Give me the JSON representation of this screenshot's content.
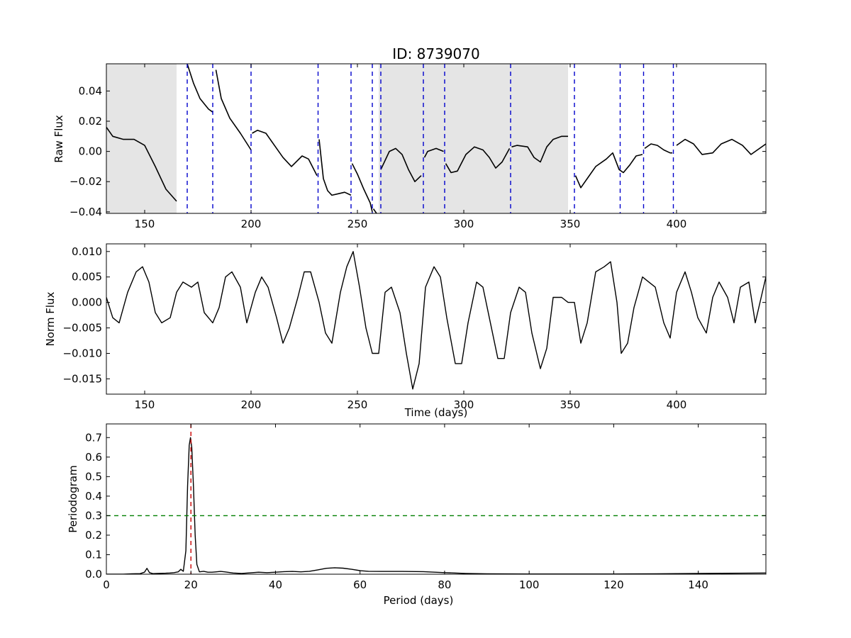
{
  "chart_data": [
    {
      "type": "line",
      "title": "ID: 8739070",
      "xlabel": "",
      "ylabel": "Raw Flux",
      "xlim": [
        132,
        442
      ],
      "ylim": [
        -0.041,
        0.058
      ],
      "xticks": [
        150,
        200,
        250,
        300,
        350,
        400
      ],
      "xtick_labels": [
        "150",
        "200",
        "250",
        "300",
        "350",
        "400"
      ],
      "yticks": [
        -0.04,
        -0.02,
        0.0,
        0.02,
        0.04
      ],
      "ytick_labels": [
        "−0.04",
        "−0.02",
        "0.00",
        "0.02",
        "0.04"
      ],
      "grid": false,
      "shaded_regions": [
        [
          132,
          165
        ],
        [
          260,
          349
        ]
      ],
      "shaded_color": "#e5e5e5",
      "vlines": [
        170,
        182,
        200,
        231.5,
        247,
        257,
        261,
        281,
        291,
        322,
        352,
        373.5,
        384.5,
        398.5
      ],
      "vline_color": "#0000cc",
      "line_color": "#000000",
      "segments": [
        {
          "x": [
            132,
            135,
            140,
            145,
            150,
            155,
            160,
            165
          ],
          "y": [
            0.016,
            0.01,
            0.008,
            0.008,
            0.004,
            -0.01,
            -0.025,
            -0.033
          ]
        },
        {
          "x": [
            170,
            173,
            176,
            180,
            182
          ],
          "y": [
            0.058,
            0.045,
            0.035,
            0.028,
            0.026
          ]
        },
        {
          "x": [
            183.5,
            186,
            190,
            195,
            200
          ],
          "y": [
            0.054,
            0.035,
            0.022,
            0.012,
            0.001
          ]
        },
        {
          "x": [
            200.5,
            203,
            207,
            211,
            215,
            219,
            224,
            227,
            231
          ],
          "y": [
            0.012,
            0.014,
            0.012,
            0.004,
            -0.004,
            -0.01,
            -0.003,
            -0.005,
            -0.016
          ]
        },
        {
          "x": [
            232,
            234,
            236,
            238,
            241,
            244,
            247
          ],
          "y": [
            0.008,
            -0.018,
            -0.026,
            -0.029,
            -0.028,
            -0.027,
            -0.029
          ]
        },
        {
          "x": [
            247.5,
            250,
            253,
            256,
            257
          ],
          "y": [
            -0.008,
            -0.015,
            -0.025,
            -0.034,
            -0.04
          ]
        },
        {
          "x": [
            257.5,
            259
          ],
          "y": [
            -0.038,
            -0.041
          ]
        },
        {
          "x": [
            261,
            265,
            268,
            271,
            274,
            277,
            280
          ],
          "y": [
            -0.012,
            0.0,
            0.002,
            -0.002,
            -0.012,
            -0.02,
            -0.016
          ]
        },
        {
          "x": [
            281.5,
            283,
            287,
            290.5
          ],
          "y": [
            -0.004,
            0.0,
            0.002,
            0.0
          ]
        },
        {
          "x": [
            291.5,
            294,
            297,
            301,
            305,
            309,
            312,
            315,
            318,
            321.5
          ],
          "y": [
            -0.008,
            -0.014,
            -0.013,
            -0.002,
            0.003,
            0.001,
            -0.004,
            -0.011,
            -0.007,
            0.002
          ]
        },
        {
          "x": [
            322.5,
            325,
            330,
            333,
            336,
            339,
            342,
            346,
            349
          ],
          "y": [
            0.003,
            0.004,
            0.003,
            -0.004,
            -0.007,
            0.003,
            0.008,
            0.01,
            0.01
          ]
        },
        {
          "x": [
            352.5,
            355,
            358,
            362,
            367,
            370,
            373,
            375,
            378,
            381,
            384
          ],
          "y": [
            -0.016,
            -0.024,
            -0.018,
            -0.01,
            -0.005,
            -0.001,
            -0.012,
            -0.014,
            -0.009,
            -0.003,
            -0.002
          ]
        },
        {
          "x": [
            385,
            388,
            391,
            394,
            397,
            398
          ],
          "y": [
            0.002,
            0.005,
            0.004,
            0.001,
            -0.001,
            -0.001
          ]
        },
        {
          "x": [
            400,
            404,
            408,
            412,
            417,
            421,
            426,
            431,
            435,
            442
          ],
          "y": [
            0.004,
            0.008,
            0.005,
            -0.002,
            -0.001,
            0.005,
            0.008,
            0.004,
            -0.002,
            0.005
          ]
        }
      ]
    },
    {
      "type": "line",
      "title": "",
      "xlabel": "Time (days)",
      "ylabel": "Norm Flux",
      "xlim": [
        132,
        442
      ],
      "ylim": [
        -0.018,
        0.0115
      ],
      "xticks": [
        150,
        200,
        250,
        300,
        350,
        400
      ],
      "xtick_labels": [
        "150",
        "200",
        "250",
        "300",
        "350",
        "400"
      ],
      "yticks": [
        -0.015,
        -0.01,
        -0.005,
        0.0,
        0.005,
        0.01
      ],
      "ytick_labels": [
        "−0.015",
        "−0.010",
        "−0.005",
        "0.000",
        "0.005",
        "0.010"
      ],
      "grid": false,
      "line_color": "#000000",
      "x": [
        132,
        135,
        138,
        142,
        146,
        149,
        152,
        155,
        158,
        162,
        165,
        168,
        172,
        175,
        178,
        182,
        185,
        188,
        191,
        195,
        198,
        202,
        205,
        208,
        212,
        215,
        218,
        222,
        225,
        228,
        232,
        235,
        238,
        242,
        245,
        248,
        251,
        254,
        257,
        260,
        263,
        266,
        270,
        273,
        276,
        279,
        282,
        286,
        289,
        292,
        296,
        299,
        302,
        306,
        309,
        312,
        316,
        319,
        322,
        326,
        329,
        332,
        336,
        339,
        342,
        346,
        349,
        352,
        355,
        358,
        362,
        366,
        369,
        372,
        374,
        377,
        380,
        384,
        387,
        390,
        394,
        397,
        400,
        404,
        407,
        410,
        414,
        417,
        420,
        424,
        427,
        430,
        434,
        437,
        442
      ],
      "y": [
        0.001,
        -0.003,
        -0.004,
        0.002,
        0.006,
        0.007,
        0.004,
        -0.002,
        -0.004,
        -0.003,
        0.002,
        0.004,
        0.003,
        0.004,
        -0.002,
        -0.004,
        -0.001,
        0.005,
        0.006,
        0.003,
        -0.004,
        0.002,
        0.005,
        0.003,
        -0.003,
        -0.008,
        -0.005,
        0.001,
        0.006,
        0.006,
        0.0,
        -0.006,
        -0.008,
        0.002,
        0.007,
        0.01,
        0.003,
        -0.005,
        -0.01,
        -0.01,
        0.002,
        0.003,
        -0.002,
        -0.01,
        -0.017,
        -0.012,
        0.003,
        0.007,
        0.005,
        -0.003,
        -0.012,
        -0.012,
        -0.004,
        0.004,
        0.003,
        -0.003,
        -0.011,
        -0.011,
        -0.002,
        0.003,
        0.002,
        -0.006,
        -0.013,
        -0.009,
        0.001,
        0.001,
        0.0,
        0.0,
        -0.008,
        -0.004,
        0.006,
        0.007,
        0.008,
        0.0,
        -0.01,
        -0.008,
        -0.001,
        0.005,
        0.004,
        0.003,
        -0.004,
        -0.007,
        0.002,
        0.006,
        0.002,
        -0.003,
        -0.006,
        0.001,
        0.004,
        0.001,
        -0.004,
        0.003,
        0.004,
        -0.004,
        0.005
      ]
    },
    {
      "type": "line",
      "title": "",
      "xlabel": "Period (days)",
      "ylabel": "Periodogram",
      "xlim": [
        0,
        156
      ],
      "ylim": [
        0.0,
        0.77
      ],
      "xticks": [
        0,
        20,
        40,
        60,
        80,
        100,
        120,
        140
      ],
      "xtick_labels": [
        "0",
        "20",
        "40",
        "60",
        "80",
        "100",
        "120",
        "140"
      ],
      "yticks": [
        0.0,
        0.1,
        0.2,
        0.3,
        0.4,
        0.5,
        0.6,
        0.7
      ],
      "ytick_labels": [
        "0.0",
        "0.1",
        "0.2",
        "0.3",
        "0.4",
        "0.5",
        "0.6",
        "0.7"
      ],
      "grid": false,
      "line_color": "#000000",
      "hline": {
        "y": 0.3,
        "color": "#008000"
      },
      "vline": {
        "x": 20,
        "color": "#cc0000"
      },
      "x": [
        0,
        4,
        6,
        8,
        9,
        9.6,
        10.2,
        11,
        12,
        14,
        15,
        16,
        17,
        17.6,
        18.2,
        18.8,
        19.2,
        19.6,
        19.9,
        20.2,
        20.6,
        21,
        21.4,
        22,
        23,
        24,
        25,
        26,
        27,
        28,
        30,
        32,
        34,
        36,
        38,
        40,
        42,
        44,
        46,
        48,
        50,
        52,
        54,
        56,
        58,
        60,
        62,
        65,
        70,
        75,
        80,
        85,
        90,
        100,
        110,
        120,
        130,
        140,
        150,
        156
      ],
      "y": [
        0.0,
        0.0,
        0.002,
        0.003,
        0.01,
        0.03,
        0.008,
        0.003,
        0.004,
        0.005,
        0.006,
        0.008,
        0.012,
        0.025,
        0.015,
        0.12,
        0.45,
        0.66,
        0.7,
        0.65,
        0.45,
        0.2,
        0.05,
        0.012,
        0.015,
        0.01,
        0.01,
        0.012,
        0.014,
        0.012,
        0.006,
        0.004,
        0.007,
        0.01,
        0.008,
        0.01,
        0.013,
        0.014,
        0.012,
        0.015,
        0.022,
        0.03,
        0.033,
        0.031,
        0.025,
        0.018,
        0.015,
        0.014,
        0.014,
        0.013,
        0.008,
        0.004,
        0.002,
        0.001,
        0.001,
        0.001,
        0.002,
        0.004,
        0.005,
        0.006
      ]
    }
  ]
}
